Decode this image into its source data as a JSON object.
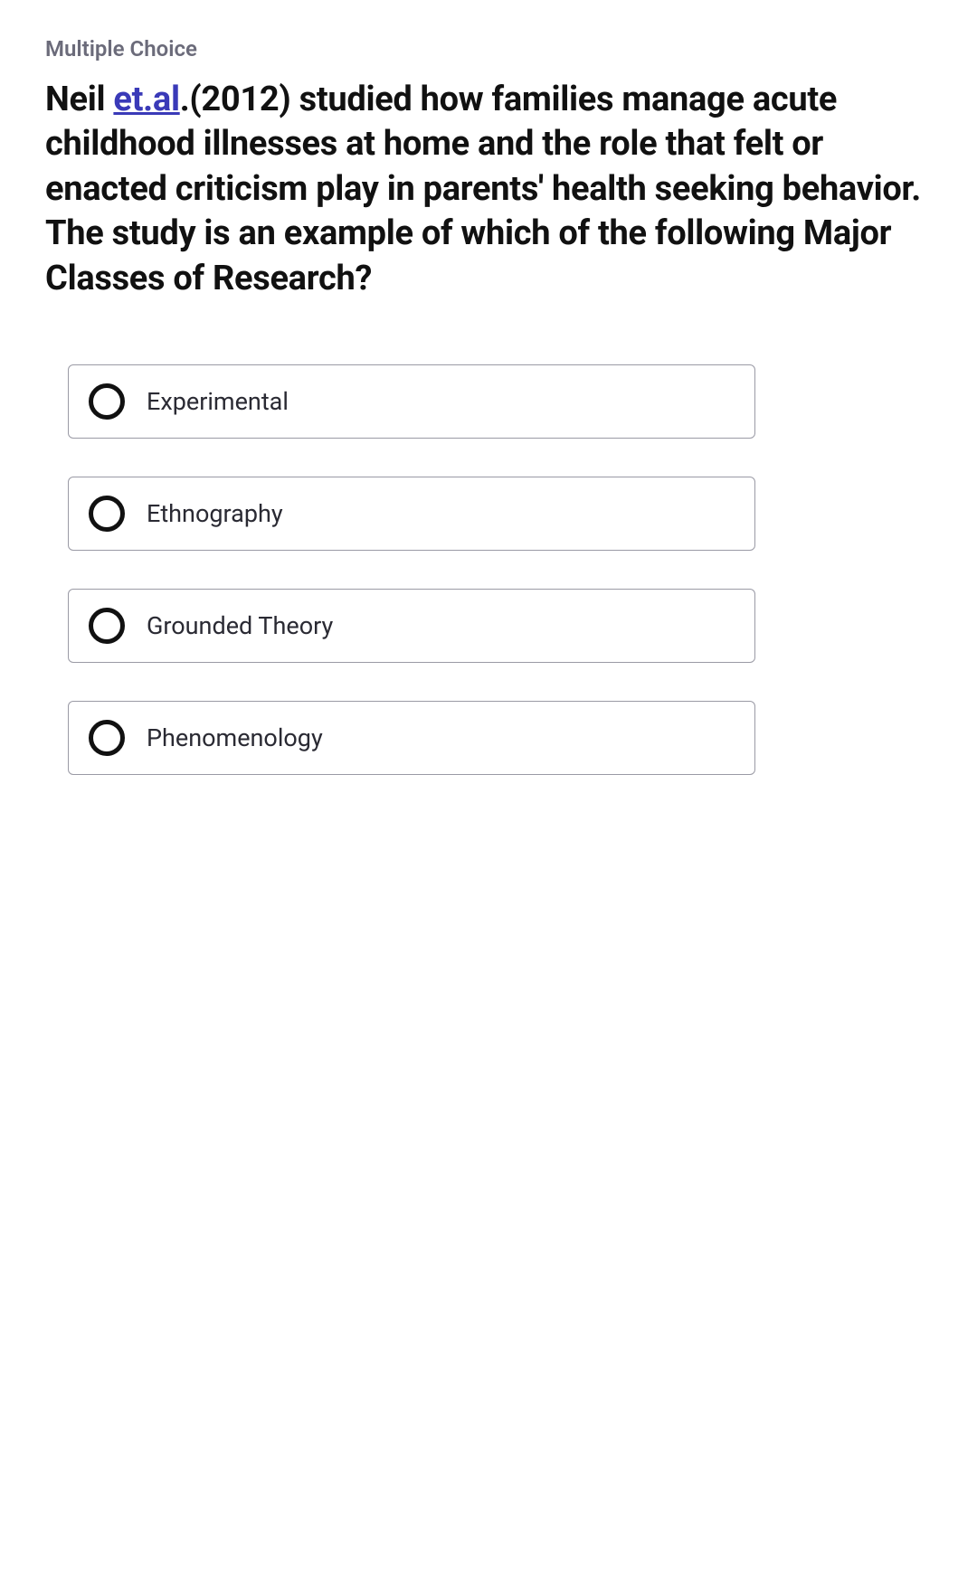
{
  "question": {
    "type_label": "Multiple Choice",
    "text_prefix": "Neil ",
    "link_text": "et.al",
    "text_suffix": ".(2012) studied how families manage acute childhood illnesses at home and the role that felt or enacted criticism play in parents' health seeking behavior. The study is an example of which of the following Major Classes of Research?"
  },
  "options": [
    {
      "label": "Experimental"
    },
    {
      "label": "Ethnography"
    },
    {
      "label": "Grounded Theory"
    },
    {
      "label": "Phenomenology"
    }
  ],
  "styling": {
    "background_color": "#ffffff",
    "type_label_color": "#6b6b7a",
    "question_text_color": "#111111",
    "link_color": "#3a3ab8",
    "option_border_color": "#9a9aa5",
    "radio_border_color": "#111111",
    "option_text_color": "#2a2a33",
    "question_fontsize": 38,
    "type_label_fontsize": 24,
    "option_fontsize": 27
  }
}
